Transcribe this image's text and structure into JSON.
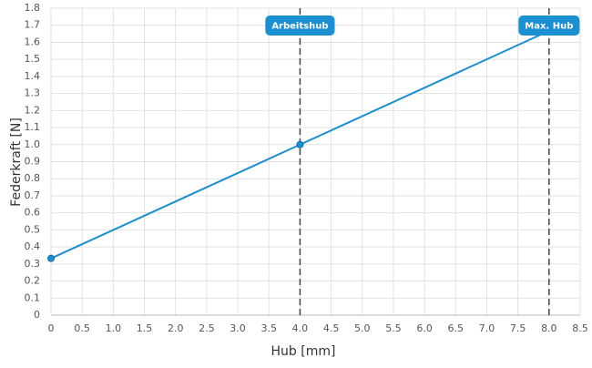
{
  "chart_data": {
    "type": "line",
    "x_label": "Hub [mm]",
    "y_label": "Federkraft [N]",
    "x": [
      0,
      4,
      8
    ],
    "series": [
      {
        "name": "Federkraft",
        "color": "#1a8fd1",
        "values": [
          0.333,
          1.0,
          1.667
        ]
      }
    ],
    "xlim": [
      0,
      8.5
    ],
    "xticks": [
      0,
      0.5,
      {
        "value": 1,
        "label": "1.0"
      },
      1.5,
      {
        "value": 2,
        "label": "2.0"
      },
      2.5,
      {
        "value": 3,
        "label": "3.0"
      },
      3.5,
      {
        "value": 4,
        "label": "4.0"
      },
      4.5,
      {
        "value": 5,
        "label": "5.0"
      },
      5.5,
      {
        "value": 6,
        "label": "6.0"
      },
      6.5,
      {
        "value": 7,
        "label": "7.0"
      },
      7.5,
      {
        "value": 8,
        "label": "8.0"
      },
      8.5
    ],
    "ylim": [
      0,
      1.8
    ],
    "yticks": [
      0,
      0.1,
      0.2,
      0.3,
      0.4,
      0.5,
      0.6,
      0.7,
      0.8,
      0.9,
      {
        "value": 1,
        "label": "1.0"
      },
      1.1,
      1.2,
      1.3,
      1.4,
      1.5,
      1.6,
      1.7,
      1.8
    ],
    "grid": true,
    "annotations": [
      {
        "x": 4,
        "label": "Arbeitshub"
      },
      {
        "x": 8,
        "label": "Max. Hub"
      }
    ]
  }
}
